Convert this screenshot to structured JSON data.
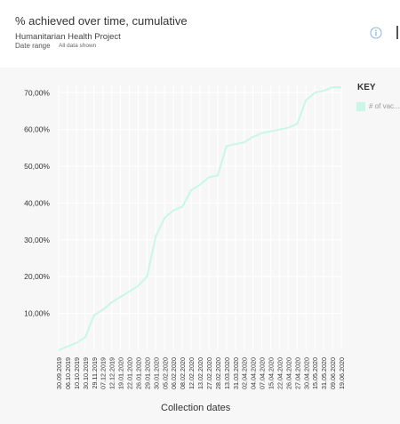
{
  "header": {
    "title": "% achieved over time, cumulative",
    "subtitle": "Humanitarian Health Project",
    "date_range_label": "Date range",
    "date_range_value": "All data shown"
  },
  "key": {
    "title": "KEY",
    "item_label": "# of vac...",
    "item_color": "#c8f7e8"
  },
  "colors": {
    "line": "#c8f7e8",
    "grid": "#ffffff",
    "plot_bg": "#f7f7f7",
    "info_icon": "#8ab4e0"
  },
  "chart_data": {
    "type": "line",
    "title": "% achieved over time, cumulative",
    "xlabel": "Collection dates",
    "ylabel": "",
    "y_tick_labels": [
      "10,00%",
      "20,00%",
      "30,00%",
      "40,00%",
      "50,00%",
      "60,00%",
      "70,00%"
    ],
    "y_ticks": [
      10,
      20,
      30,
      40,
      50,
      60,
      70
    ],
    "ylim": [
      0,
      72
    ],
    "grid": true,
    "legend": "right",
    "categories": [
      "30.09.2019",
      "06.10.2019",
      "10.10.2019",
      "30.10.2019",
      "29.11.2019",
      "07.12.2019",
      "12.12.2019",
      "19.01.2020",
      "22.01.2020",
      "26.01.2020",
      "29.01.2020",
      "30.01.2020",
      "05.02.2020",
      "06.02.2020",
      "08.02.2020",
      "12.02.2020",
      "13.02.2020",
      "27.02.2020",
      "28.02.2020",
      "13.03.2020",
      "31.03.2020",
      "02.04.2020",
      "04.04.2020",
      "07.04.2020",
      "15.04.2020",
      "22.04.2020",
      "26.04.2020",
      "27.04.2020",
      "30.04.2020",
      "15.05.2020",
      "31.05.2020",
      "09.06.2020",
      "19.06.2020"
    ],
    "series": [
      {
        "name": "# of vac...",
        "values": [
          0,
          1,
          2,
          3.5,
          9.5,
          11,
          13,
          14.5,
          16,
          17.5,
          20,
          31,
          36,
          38,
          39,
          43.5,
          45,
          47,
          47.5,
          55.5,
          56,
          56.5,
          58,
          59,
          59.5,
          60,
          60.5,
          61.5,
          68,
          70,
          70.5,
          71.5,
          71.5
        ]
      }
    ]
  }
}
